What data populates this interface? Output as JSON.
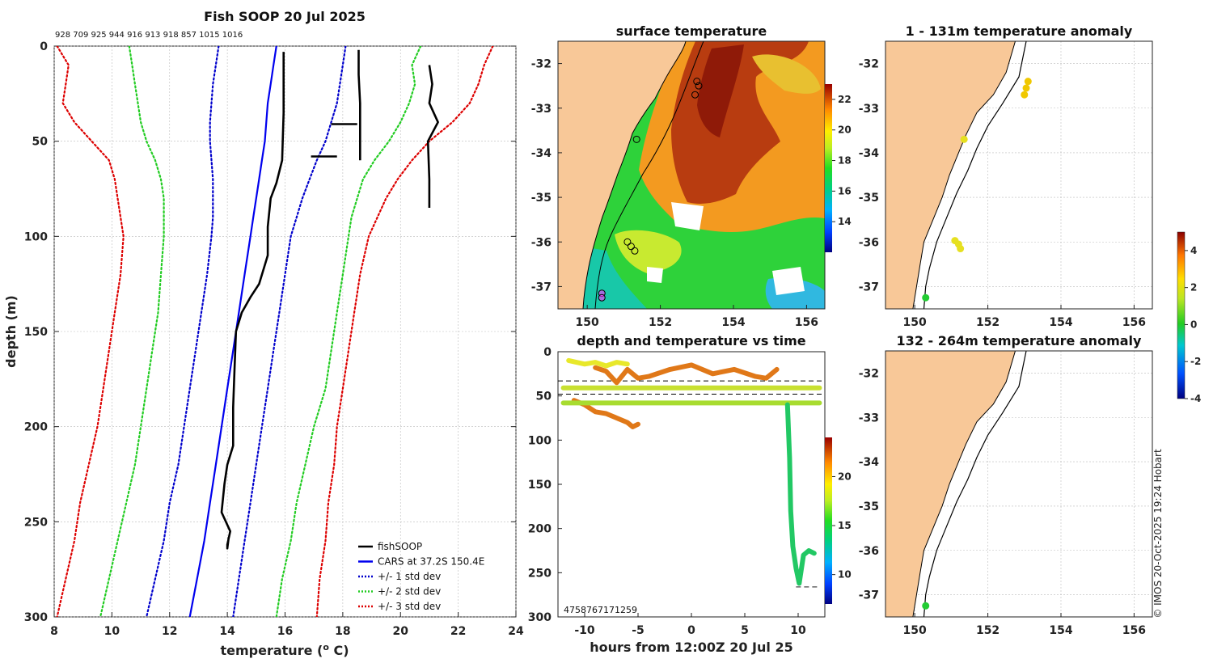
{
  "chart_data": [
    {
      "type": "line",
      "id": "profile",
      "title": "Fish SOOP 20 Jul 2025",
      "header_numbers": "928 709 925 944 916 913 918 857 1015 1016",
      "xlabel": "temperature (",
      "xlabel_sup": "o",
      "xlabel_end": " C)",
      "ylabel": "depth (m)",
      "xlim": [
        8,
        24
      ],
      "ylim": [
        0,
        300
      ],
      "xticks": [
        "8",
        "10",
        "12",
        "14",
        "16",
        "18",
        "20",
        "22",
        "24"
      ],
      "yticks": [
        "0",
        "50",
        "100",
        "150",
        "200",
        "250",
        "300"
      ],
      "legend": [
        "fishSOOP",
        "CARS at 37.2S 150.4E",
        "+/- 1 std dev",
        "+/- 2 std dev",
        "+/- 3 std dev"
      ],
      "colors": {
        "fish": "#000000",
        "cars": "#0000ee",
        "std1": "#0000cc",
        "std2": "#22cc22",
        "std3": "#dd0000"
      },
      "depths": [
        0,
        10,
        20,
        30,
        40,
        50,
        60,
        70,
        80,
        90,
        100,
        120,
        140,
        160,
        180,
        200,
        220,
        240,
        260,
        280,
        300
      ],
      "cars": [
        15.7,
        15.6,
        15.5,
        15.4,
        15.35,
        15.3,
        15.2,
        15.1,
        15.0,
        14.9,
        14.8,
        14.6,
        14.4,
        14.2,
        14.0,
        13.8,
        13.6,
        13.4,
        13.2,
        12.95,
        12.7
      ],
      "std1_left": [
        13.7,
        13.6,
        13.5,
        13.45,
        13.4,
        13.4,
        13.45,
        13.5,
        13.5,
        13.5,
        13.45,
        13.3,
        13.1,
        12.9,
        12.7,
        12.5,
        12.3,
        12.0,
        11.8,
        11.5,
        11.2
      ],
      "std1_right": [
        18.1,
        18.0,
        17.9,
        17.8,
        17.6,
        17.4,
        17.1,
        16.85,
        16.6,
        16.4,
        16.2,
        16.0,
        15.8,
        15.6,
        15.4,
        15.2,
        15.0,
        14.8,
        14.6,
        14.4,
        14.2
      ],
      "std2_left": [
        10.6,
        10.7,
        10.8,
        10.9,
        11.0,
        11.2,
        11.5,
        11.7,
        11.8,
        11.8,
        11.8,
        11.7,
        11.6,
        11.4,
        11.2,
        11.0,
        10.8,
        10.5,
        10.2,
        9.9,
        9.6
      ],
      "std2_right": [
        20.7,
        20.4,
        20.5,
        20.3,
        20.0,
        19.6,
        19.1,
        18.7,
        18.5,
        18.3,
        18.2,
        18.0,
        17.8,
        17.6,
        17.4,
        17.0,
        16.7,
        16.4,
        16.2,
        15.9,
        15.7
      ],
      "std3_left": [
        8.1,
        8.5,
        8.4,
        8.3,
        8.7,
        9.3,
        9.9,
        10.1,
        10.2,
        10.3,
        10.4,
        10.3,
        10.1,
        9.9,
        9.7,
        9.5,
        9.2,
        8.9,
        8.7,
        8.4,
        8.1
      ],
      "std3_right": [
        23.2,
        22.9,
        22.7,
        22.4,
        21.8,
        21.0,
        20.4,
        19.9,
        19.5,
        19.2,
        18.9,
        18.6,
        18.4,
        18.2,
        18.0,
        17.8,
        17.7,
        17.5,
        17.4,
        17.2,
        17.1
      ],
      "fish_series": [
        {
          "t": [
            15.95,
            15.95,
            15.95,
            15.9,
            15.7,
            15.5,
            15.4,
            15.4,
            15.1,
            14.8,
            14.5,
            14.3,
            14.25,
            14.2,
            14.2,
            14.0,
            13.9,
            13.8,
            14.1,
            14.0,
            14.0,
            14.05
          ],
          "d": [
            3,
            20,
            35,
            60,
            72,
            80,
            95,
            110,
            125,
            132,
            140,
            150,
            170,
            190,
            210,
            220,
            230,
            245,
            255,
            262,
            264,
            258
          ]
        },
        {
          "t": [
            18.55,
            18.55,
            18.6,
            18.6,
            18.6
          ],
          "d": [
            2,
            15,
            30,
            45,
            60
          ]
        },
        {
          "t": [
            17.6,
            18.5
          ],
          "d": [
            41,
            41
          ]
        },
        {
          "t": [
            16.9,
            17.8
          ],
          "d": [
            58,
            58
          ]
        },
        {
          "t": [
            21.0,
            21.1,
            21.0,
            21.3,
            20.95,
            21.0,
            21.0
          ],
          "d": [
            10,
            20,
            30,
            40,
            50,
            70,
            85
          ]
        }
      ]
    },
    {
      "type": "heatmap",
      "id": "surface",
      "title": "surface temperature",
      "xlim": [
        149.2,
        156.5
      ],
      "ylim": [
        -37.5,
        -31.5
      ],
      "xticks": [
        "150",
        "152",
        "154",
        "156"
      ],
      "yticks": [
        "-32",
        "-33",
        "-34",
        "-35",
        "-36",
        "-37"
      ],
      "colorbar": {
        "min": 12,
        "max": 23,
        "ticks": [
          "14",
          "16",
          "18",
          "20",
          "22"
        ]
      },
      "stations": [
        {
          "lon": 153.0,
          "lat": -32.4
        },
        {
          "lon": 153.05,
          "lat": -32.5
        },
        {
          "lon": 152.95,
          "lat": -32.7
        },
        {
          "lon": 151.35,
          "lat": -33.7
        },
        {
          "lon": 151.1,
          "lat": -36.0
        },
        {
          "lon": 151.2,
          "lat": -36.1
        },
        {
          "lon": 151.3,
          "lat": -36.2
        },
        {
          "lon": 150.4,
          "lat": -37.15
        },
        {
          "lon": 150.4,
          "lat": -37.25
        }
      ]
    },
    {
      "type": "scatter",
      "id": "timeseries",
      "title": "depth and temperature vs time",
      "xlabel": "hours from 12:00Z 20 Jul 25",
      "xlim": [
        -12.5,
        12.5
      ],
      "ylim": [
        0,
        300
      ],
      "xticks": [
        "-10",
        "-5",
        "0",
        "5",
        "10"
      ],
      "yticks": [
        "0",
        "50",
        "100",
        "150",
        "200",
        "250",
        "300"
      ],
      "colorbar": {
        "min": 7,
        "max": 24,
        "ticks": [
          "10",
          "15",
          "20"
        ]
      },
      "dashed_depths": [
        33,
        48
      ],
      "corner_label": "4758767171259",
      "tracks": [
        {
          "color": "#e8e82a",
          "x": [
            -11.5,
            -10,
            -9,
            -8,
            -7,
            -6
          ],
          "y": [
            10,
            14,
            12,
            16,
            12,
            14
          ]
        },
        {
          "color": "#e07818",
          "x": [
            -9,
            -8,
            -7,
            -6,
            -5,
            -4,
            -2,
            0,
            2,
            4,
            6,
            7,
            8
          ],
          "y": [
            18,
            22,
            35,
            20,
            30,
            28,
            20,
            15,
            25,
            20,
            28,
            30,
            20
          ]
        },
        {
          "color": "#e07818",
          "x": [
            -11,
            -10,
            -9,
            -8,
            -7,
            -6,
            -5.5,
            -5
          ],
          "y": [
            55,
            60,
            68,
            70,
            75,
            80,
            85,
            82
          ]
        },
        {
          "color": "#c8e030",
          "x": [
            -12,
            -6,
            0,
            6,
            12
          ],
          "y": [
            41,
            41,
            41,
            41,
            41
          ]
        },
        {
          "color": "#a8dc30",
          "x": [
            -12,
            -6,
            0,
            6,
            12
          ],
          "y": [
            58,
            58,
            58,
            58,
            58
          ]
        },
        {
          "color": "#22c864",
          "x": [
            9.0,
            9.2,
            9.3,
            9.5,
            9.8,
            10.1,
            10.5,
            11.0,
            11.5
          ],
          "y": [
            60,
            120,
            180,
            220,
            245,
            262,
            230,
            225,
            228
          ]
        }
      ]
    },
    {
      "type": "scatter",
      "id": "anom1",
      "title": "1 - 131m temperature anomaly",
      "xlim": [
        149.2,
        156.5
      ],
      "ylim": [
        -37.5,
        -31.5
      ],
      "xticks": [
        "150",
        "152",
        "154",
        "156"
      ],
      "yticks": [
        "-32",
        "-33",
        "-34",
        "-35",
        "-36",
        "-37"
      ],
      "points": [
        {
          "lon": 153.1,
          "lat": -32.4,
          "v": 2.4
        },
        {
          "lon": 153.05,
          "lat": -32.55,
          "v": 2.3
        },
        {
          "lon": 153.0,
          "lat": -32.7,
          "v": 2.6
        },
        {
          "lon": 151.35,
          "lat": -33.7,
          "v": 1.8
        },
        {
          "lon": 151.1,
          "lat": -35.97,
          "v": 2.0
        },
        {
          "lon": 151.2,
          "lat": -36.05,
          "v": 2.0
        },
        {
          "lon": 151.25,
          "lat": -36.15,
          "v": 2.0
        },
        {
          "lon": 150.3,
          "lat": -37.25,
          "v": 0.1
        }
      ]
    },
    {
      "type": "scatter",
      "id": "anom2",
      "title": "132 - 264m temperature anomaly",
      "xlim": [
        149.2,
        156.5
      ],
      "ylim": [
        -37.5,
        -31.5
      ],
      "xticks": [
        "150",
        "152",
        "154",
        "156"
      ],
      "yticks": [
        "-32",
        "-33",
        "-34",
        "-35",
        "-36",
        "-37"
      ],
      "points": [
        {
          "lon": 150.3,
          "lat": -37.25,
          "v": 0.2
        }
      ],
      "colorbar": {
        "min": -4,
        "max": 5,
        "ticks": [
          "4",
          "2",
          "0",
          "-2",
          "-4"
        ]
      }
    }
  ],
  "footer": "© IMOS 20-Oct-2025 19:24 Hobart"
}
